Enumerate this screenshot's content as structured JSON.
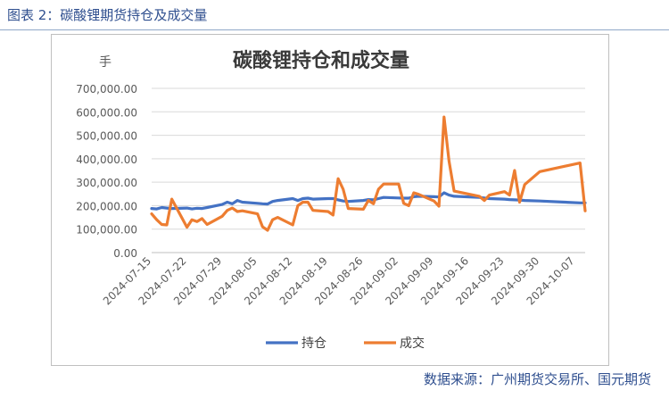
{
  "figure": {
    "header": "图表 2：碳酸锂期货持仓及成交量",
    "source": "数据来源：广州期货交易所、国元期货"
  },
  "chart_data": {
    "type": "line",
    "title": "碳酸锂持仓和成交量",
    "ylabel": "手",
    "xlabel": "",
    "ylim": [
      0,
      700000
    ],
    "yticks": [
      "0.00",
      "100,000.00",
      "200,000.00",
      "300,000.00",
      "400,000.00",
      "500,000.00",
      "600,000.00",
      "700,000.00"
    ],
    "xtick_labels": [
      "2024-07-15",
      "2024-07-22",
      "2024-07-29",
      "2024-08-05",
      "2024-08-12",
      "2024-08-19",
      "2024-08-26",
      "2024-09-02",
      "2024-09-09",
      "2024-09-16",
      "2024-09-23",
      "2024-09-30",
      "2024-10-07"
    ],
    "grid": true,
    "legend_position": "bottom",
    "series": [
      {
        "name": "持仓",
        "color": "#4472C4",
        "points": [
          [
            "2024-07-15",
            188000
          ],
          [
            "2024-07-16",
            186000
          ],
          [
            "2024-07-17",
            192000
          ],
          [
            "2024-07-18",
            190000
          ],
          [
            "2024-07-19",
            188000
          ],
          [
            "2024-07-22",
            190000
          ],
          [
            "2024-07-23",
            186000
          ],
          [
            "2024-07-24",
            189000
          ],
          [
            "2024-07-25",
            188000
          ],
          [
            "2024-07-26",
            192000
          ],
          [
            "2024-07-29",
            205000
          ],
          [
            "2024-07-30",
            215000
          ],
          [
            "2024-07-31",
            208000
          ],
          [
            "2024-08-01",
            222000
          ],
          [
            "2024-08-02",
            215000
          ],
          [
            "2024-08-05",
            210000
          ],
          [
            "2024-08-06",
            208000
          ],
          [
            "2024-08-07",
            207000
          ],
          [
            "2024-08-08",
            218000
          ],
          [
            "2024-08-09",
            222000
          ],
          [
            "2024-08-12",
            230000
          ],
          [
            "2024-08-13",
            222000
          ],
          [
            "2024-08-14",
            230000
          ],
          [
            "2024-08-15",
            232000
          ],
          [
            "2024-08-16",
            228000
          ],
          [
            "2024-08-19",
            230000
          ],
          [
            "2024-08-20",
            230000
          ],
          [
            "2024-08-21",
            225000
          ],
          [
            "2024-08-22",
            220000
          ],
          [
            "2024-08-23",
            218000
          ],
          [
            "2024-08-26",
            222000
          ],
          [
            "2024-08-27",
            226000
          ],
          [
            "2024-08-28",
            225000
          ],
          [
            "2024-08-29",
            230000
          ],
          [
            "2024-08-30",
            235000
          ],
          [
            "2024-09-02",
            233000
          ],
          [
            "2024-09-03",
            232000
          ],
          [
            "2024-09-04",
            232000
          ],
          [
            "2024-09-05",
            238000
          ],
          [
            "2024-09-06",
            240000
          ],
          [
            "2024-09-09",
            238000
          ],
          [
            "2024-09-10",
            237000
          ],
          [
            "2024-09-11",
            255000
          ],
          [
            "2024-09-12",
            245000
          ],
          [
            "2024-09-13",
            240000
          ],
          [
            "2024-09-18",
            235000
          ],
          [
            "2024-09-19",
            233000
          ],
          [
            "2024-09-20",
            230000
          ],
          [
            "2024-09-23",
            228000
          ],
          [
            "2024-09-24",
            226000
          ],
          [
            "2024-09-25",
            225000
          ],
          [
            "2024-09-26",
            224000
          ],
          [
            "2024-09-27",
            222000
          ],
          [
            "2024-09-30",
            220000
          ],
          [
            "2024-10-08",
            212000
          ],
          [
            "2024-10-09",
            212000
          ]
        ]
      },
      {
        "name": "成交",
        "color": "#ED7D31",
        "points": [
          [
            "2024-07-15",
            165000
          ],
          [
            "2024-07-16",
            140000
          ],
          [
            "2024-07-17",
            120000
          ],
          [
            "2024-07-18",
            118000
          ],
          [
            "2024-07-19",
            228000
          ],
          [
            "2024-07-22",
            108000
          ],
          [
            "2024-07-23",
            140000
          ],
          [
            "2024-07-24",
            132000
          ],
          [
            "2024-07-25",
            145000
          ],
          [
            "2024-07-26",
            120000
          ],
          [
            "2024-07-29",
            155000
          ],
          [
            "2024-07-30",
            180000
          ],
          [
            "2024-07-31",
            190000
          ],
          [
            "2024-08-01",
            175000
          ],
          [
            "2024-08-02",
            178000
          ],
          [
            "2024-08-05",
            165000
          ],
          [
            "2024-08-06",
            110000
          ],
          [
            "2024-08-07",
            95000
          ],
          [
            "2024-08-08",
            140000
          ],
          [
            "2024-08-09",
            150000
          ],
          [
            "2024-08-12",
            118000
          ],
          [
            "2024-08-13",
            200000
          ],
          [
            "2024-08-14",
            215000
          ],
          [
            "2024-08-15",
            215000
          ],
          [
            "2024-08-16",
            180000
          ],
          [
            "2024-08-19",
            175000
          ],
          [
            "2024-08-20",
            160000
          ],
          [
            "2024-08-21",
            315000
          ],
          [
            "2024-08-22",
            270000
          ],
          [
            "2024-08-23",
            188000
          ],
          [
            "2024-08-26",
            185000
          ],
          [
            "2024-08-27",
            222000
          ],
          [
            "2024-08-28",
            208000
          ],
          [
            "2024-08-29",
            270000
          ],
          [
            "2024-08-30",
            292000
          ],
          [
            "2024-09-02",
            292000
          ],
          [
            "2024-09-03",
            210000
          ],
          [
            "2024-09-04",
            200000
          ],
          [
            "2024-09-05",
            255000
          ],
          [
            "2024-09-06",
            248000
          ],
          [
            "2024-09-09",
            220000
          ],
          [
            "2024-09-10",
            198000
          ],
          [
            "2024-09-11",
            578000
          ],
          [
            "2024-09-12",
            390000
          ],
          [
            "2024-09-13",
            262000
          ],
          [
            "2024-09-18",
            240000
          ],
          [
            "2024-09-19",
            222000
          ],
          [
            "2024-09-20",
            245000
          ],
          [
            "2024-09-23",
            260000
          ],
          [
            "2024-09-24",
            245000
          ],
          [
            "2024-09-25",
            350000
          ],
          [
            "2024-09-26",
            215000
          ],
          [
            "2024-09-27",
            290000
          ],
          [
            "2024-09-30",
            345000
          ],
          [
            "2024-10-08",
            382000
          ],
          [
            "2024-10-09",
            178000
          ]
        ]
      }
    ]
  }
}
